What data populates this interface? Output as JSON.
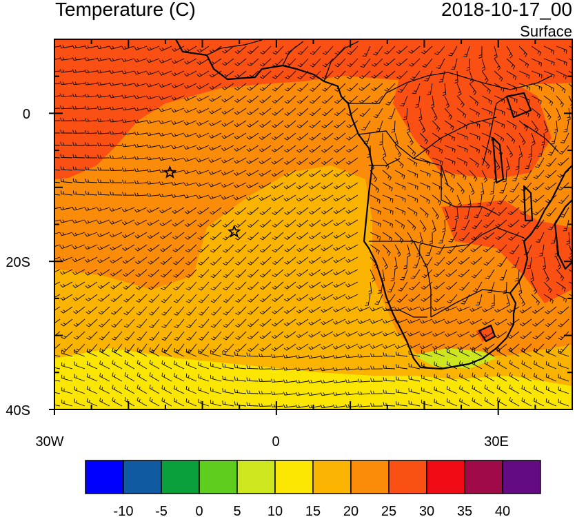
{
  "header": {
    "title": "Temperature (C)",
    "datetime": "2018-10-17_00",
    "level": "Surface"
  },
  "map": {
    "region_lon": [
      -30,
      40
    ],
    "region_lat": [
      -40,
      10
    ],
    "lat_ticks": [
      {
        "value": 0,
        "label": "0"
      },
      {
        "value": -20,
        "label": "20S"
      },
      {
        "value": -40,
        "label": "40S"
      }
    ],
    "lon_ticks": [
      {
        "value": -30,
        "label": "30W"
      },
      {
        "value": 0,
        "label": "0"
      },
      {
        "value": 30,
        "label": "30E"
      }
    ],
    "markers": [
      {
        "name": "star-marker",
        "lon": -14.4,
        "lat": -8.0
      },
      {
        "name": "star-marker",
        "lon": -5.7,
        "lat": -16.0
      }
    ]
  },
  "colorbar": {
    "colors": [
      "#0000ff",
      "#0f5aa0",
      "#0aa03c",
      "#5fcd1e",
      "#cde61e",
      "#fae600",
      "#fab400",
      "#fa8c0a",
      "#fa5014",
      "#f00a14",
      "#a00a46",
      "#640a82"
    ],
    "labels": [
      "-10",
      "-5",
      "0",
      "5",
      "10",
      "15",
      "20",
      "25",
      "30",
      "35",
      "40"
    ]
  }
}
